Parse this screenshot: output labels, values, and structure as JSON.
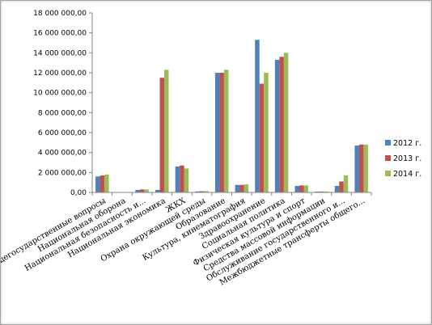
{
  "chart_data": {
    "type": "bar",
    "ylim": [
      0,
      18000000
    ],
    "y_ticks": [
      "0,00",
      "2 000 000,00",
      "4 000 000,00",
      "6 000 000,00",
      "8 000 000,00",
      "10 000 000,00",
      "12 000 000,00",
      "14 000 000,00",
      "16 000 000,00",
      "18 000 000,00"
    ],
    "tick_values": [
      0,
      2000000,
      4000000,
      6000000,
      8000000,
      10000000,
      12000000,
      14000000,
      16000000,
      18000000
    ],
    "categories": [
      "Общегосударственные вопросы",
      "Национальная оборона",
      "Национальная безопасность и...",
      "Национальная экономика",
      "ЖКХ",
      "Охрана окружающей среды",
      "Образование",
      "Культура, кинематография",
      "Здравоохранение",
      "Социальная политика",
      "Физическая культура и спорт",
      "Средства массовой информации",
      "Обслуживание государственного и...",
      "Межбюджетные трансферты общего..."
    ],
    "series": [
      {
        "name": "2012 г.",
        "color": "#4f81bd",
        "values": [
          1600000,
          30000,
          250000,
          250000,
          2600000,
          100000,
          12000000,
          750000,
          15300000,
          13300000,
          650000,
          80000,
          650000,
          4700000
        ]
      },
      {
        "name": "2013 г.",
        "color": "#c0504d",
        "values": [
          1700000,
          30000,
          300000,
          11500000,
          2700000,
          120000,
          12000000,
          750000,
          10900000,
          13600000,
          700000,
          90000,
          1100000,
          4800000
        ]
      },
      {
        "name": "2014 г.",
        "color": "#9bbb59",
        "values": [
          1800000,
          30000,
          300000,
          12300000,
          2400000,
          130000,
          12300000,
          800000,
          12000000,
          14000000,
          700000,
          90000,
          1700000,
          4800000
        ]
      }
    ],
    "grid": false,
    "legend": "right"
  }
}
